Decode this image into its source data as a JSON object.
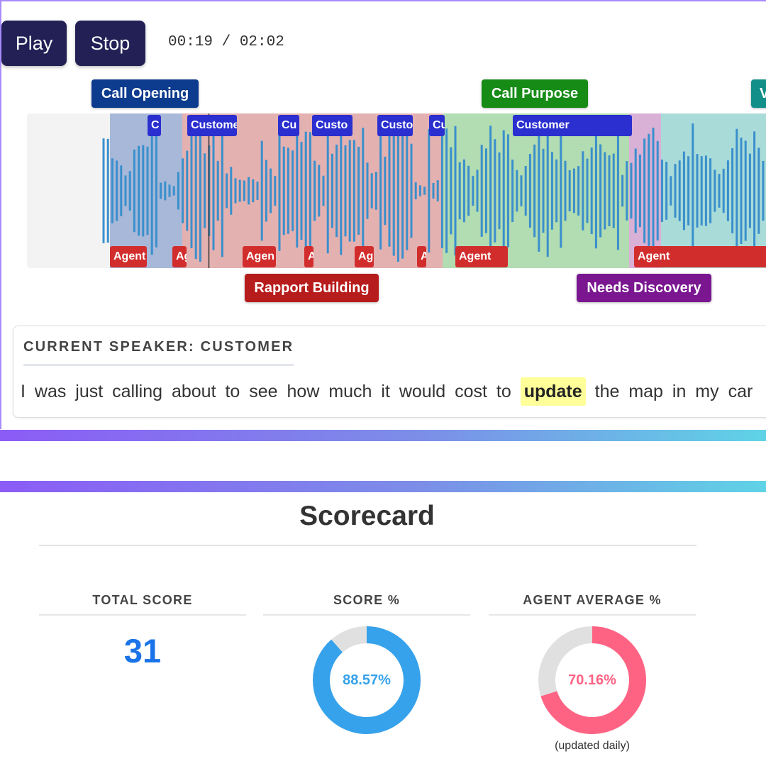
{
  "player": {
    "play_label": "Play",
    "stop_label": "Stop",
    "time_current": "00:19",
    "time_separator": " / ",
    "time_total": "02:02",
    "playhead_fraction": 0.156
  },
  "colors": {
    "button_bg": "#222055",
    "customer_tag": "#2b2fcf",
    "agent_tag": "#d22d2d",
    "wave": "#3a8fcc"
  },
  "phase_labels_top": [
    {
      "text": "Call Opening",
      "color": "#0d3b8e"
    },
    {
      "text": "Call Purpose",
      "color": "#168c16"
    },
    {
      "text": "V",
      "color": "#138f8a"
    }
  ],
  "phase_labels_bottom": [
    {
      "text": "Rapport Building",
      "color": "#b71c1c"
    },
    {
      "text": "Needs Discovery",
      "color": "#7a1790"
    }
  ],
  "phase_regions": [
    {
      "name": "call-opening",
      "color": "#a8b8d8"
    },
    {
      "name": "rapport-building",
      "color": "#e4b1b1"
    },
    {
      "name": "call-purpose",
      "color": "#b2dcb1"
    },
    {
      "name": "needs-discovery",
      "color": "#d9b0d6"
    },
    {
      "name": "value",
      "color": "#a9dcd8"
    }
  ],
  "customer_tags": [
    "C",
    "Custome",
    "Cu",
    "Custo",
    "Custo",
    "Cu",
    "Customer"
  ],
  "agent_tags": [
    "Agent",
    "Ag",
    "Agen",
    "A",
    "Ag",
    "A",
    "Agent",
    "Agent"
  ],
  "speaker": {
    "heading": "CURRENT SPEAKER: CUSTOMER",
    "before": "I was just calling about to see how much it would cost to ",
    "highlight": "update",
    "after": " the map in my car"
  },
  "scorecard": {
    "title": "Scorecard",
    "total_label": "TOTAL SCORE",
    "total_value": "31",
    "score_label": "SCORE %",
    "score_pct_text": "88.57%",
    "score_pct_value": 88.57,
    "score_color": "#36a2eb",
    "agent_label": "AGENT AVERAGE %",
    "agent_pct_text": "70.16%",
    "agent_pct_value": 70.16,
    "agent_color": "#ff6384",
    "remainder_color": "#e0e0e0",
    "note": "(updated daily)"
  }
}
